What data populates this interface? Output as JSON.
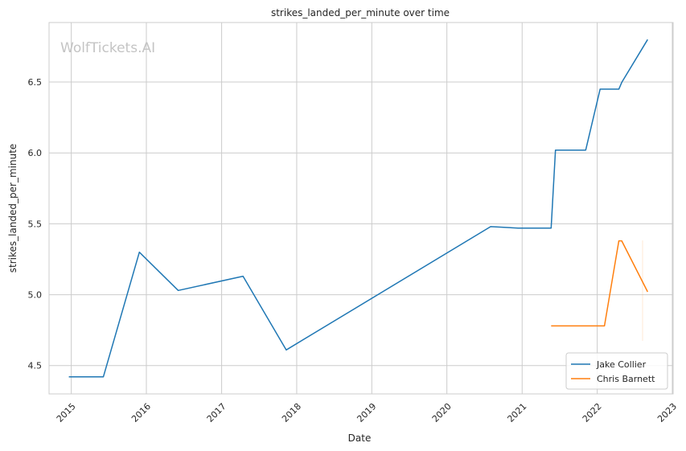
{
  "watermark": "WolfTickets.AI",
  "chart_data": {
    "type": "line",
    "title": "strikes_landed_per_minute over time",
    "xlabel": "Date",
    "ylabel": "strikes_landed_per_minute",
    "x_ticks": [
      "2015",
      "2016",
      "2017",
      "2018",
      "2019",
      "2020",
      "2021",
      "2022",
      "2023"
    ],
    "y_ticks": [
      "4.5",
      "5.0",
      "5.5",
      "6.0",
      "6.5"
    ],
    "xlim": [
      "2014-09-15",
      "2023-01-05"
    ],
    "ylim": [
      4.3,
      6.92
    ],
    "grid": true,
    "legend_position": "bottom-right",
    "series": [
      {
        "name": "Jake Collier",
        "color": "#1f77b4",
        "points": [
          [
            "2014-12-20",
            4.42
          ],
          [
            "2015-06-06",
            4.42
          ],
          [
            "2015-11-28",
            5.3
          ],
          [
            "2016-06-04",
            5.03
          ],
          [
            "2017-04-15",
            5.13
          ],
          [
            "2017-11-11",
            4.61
          ],
          [
            "2020-08-01",
            5.48
          ],
          [
            "2020-12-12",
            5.47
          ],
          [
            "2021-05-22",
            5.47
          ],
          [
            "2021-06-12",
            6.02
          ],
          [
            "2021-11-06",
            6.02
          ],
          [
            "2022-01-15",
            6.45
          ],
          [
            "2022-04-16",
            6.45
          ],
          [
            "2022-05-01",
            6.5
          ],
          [
            "2022-09-03",
            6.8
          ]
        ]
      },
      {
        "name": "Chris Barnett",
        "color": "#ff7f0e",
        "points": [
          [
            "2021-05-22",
            4.78
          ],
          [
            "2022-02-05",
            4.78
          ],
          [
            "2022-04-16",
            5.38
          ],
          [
            "2022-04-30",
            5.38
          ],
          [
            "2022-09-03",
            5.02
          ]
        ]
      }
    ]
  }
}
